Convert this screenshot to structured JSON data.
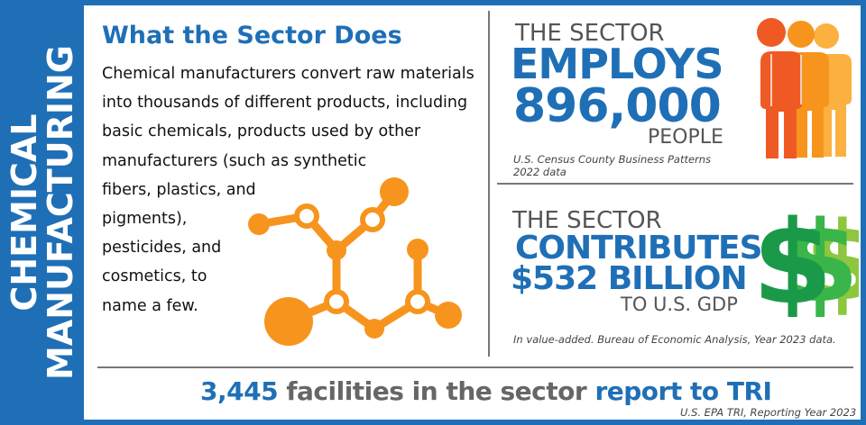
{
  "side_title": {
    "line1": "CHEMICAL",
    "line2": "MANUFACTURING"
  },
  "what": {
    "title": "What the Sector Does",
    "lines": [
      "Chemical manufacturers convert raw materials",
      "into thousands of different products, including",
      "basic chemicals, products used by other",
      "manufacturers (such as synthetic",
      "fibers, plastics, and",
      "pigments),",
      "pesticides, and",
      "cosmetics, to",
      "name a few."
    ]
  },
  "employs": {
    "the_sector": "THE SECTOR",
    "verb": "EMPLOYS",
    "number": "896,000",
    "unit": "PEOPLE",
    "source_line1": "U.S. Census County Business Patterns",
    "source_line2": "2022 data"
  },
  "contributes": {
    "the_sector": "THE SECTOR",
    "verb": "CONTRIBUTES",
    "amount": "$532 BILLION",
    "unit": "TO U.S. GDP",
    "source": "In value-added. Bureau of Economic Analysis, Year 2023 data."
  },
  "facilities": {
    "count": "3,445",
    "middle": " facilities in the sector ",
    "end": "report to TRI",
    "source": "U.S. EPA TRI, Reporting Year 2023"
  },
  "icons": {
    "molecule": "molecule-icon",
    "people": "people-group-icon",
    "dollars": "dollar-signs-icon"
  },
  "colors": {
    "brand_blue": "#1f6fb6",
    "orange": "#f7941d",
    "people_dark": "#ef5a24",
    "people_mid": "#f7941d",
    "people_light": "#fbb040",
    "green_dark": "#1a9a48",
    "green_mid": "#39b54a",
    "green_light": "#8dc63f"
  }
}
